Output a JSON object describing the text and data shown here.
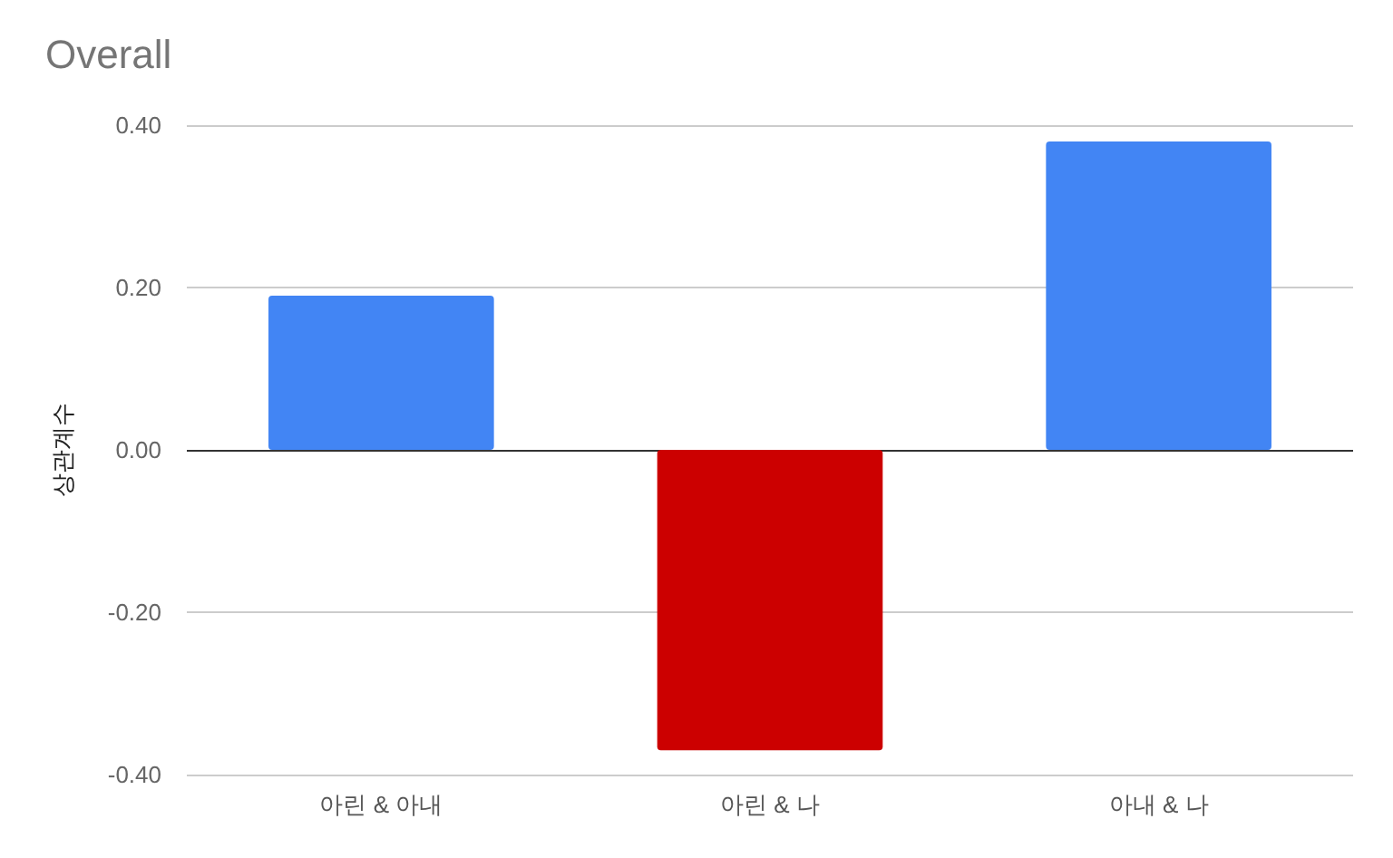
{
  "chart_data": {
    "type": "bar",
    "title": "Overall",
    "ylabel": "상관계수",
    "categories": [
      "아린 & 아내",
      "아린 & 나",
      "아내 & 나"
    ],
    "values": [
      0.19,
      -0.37,
      0.38
    ],
    "colors": [
      "#4285f4",
      "#cc0000",
      "#4285f4"
    ],
    "ylim": [
      -0.4,
      0.4
    ],
    "yticks": [
      {
        "value": -0.4,
        "label": "-0.40"
      },
      {
        "value": -0.2,
        "label": "-0.20"
      },
      {
        "value": 0,
        "label": "0.00"
      },
      {
        "value": 0.2,
        "label": "0.20"
      },
      {
        "value": 0.4,
        "label": "0.40"
      }
    ],
    "grid": "y"
  }
}
